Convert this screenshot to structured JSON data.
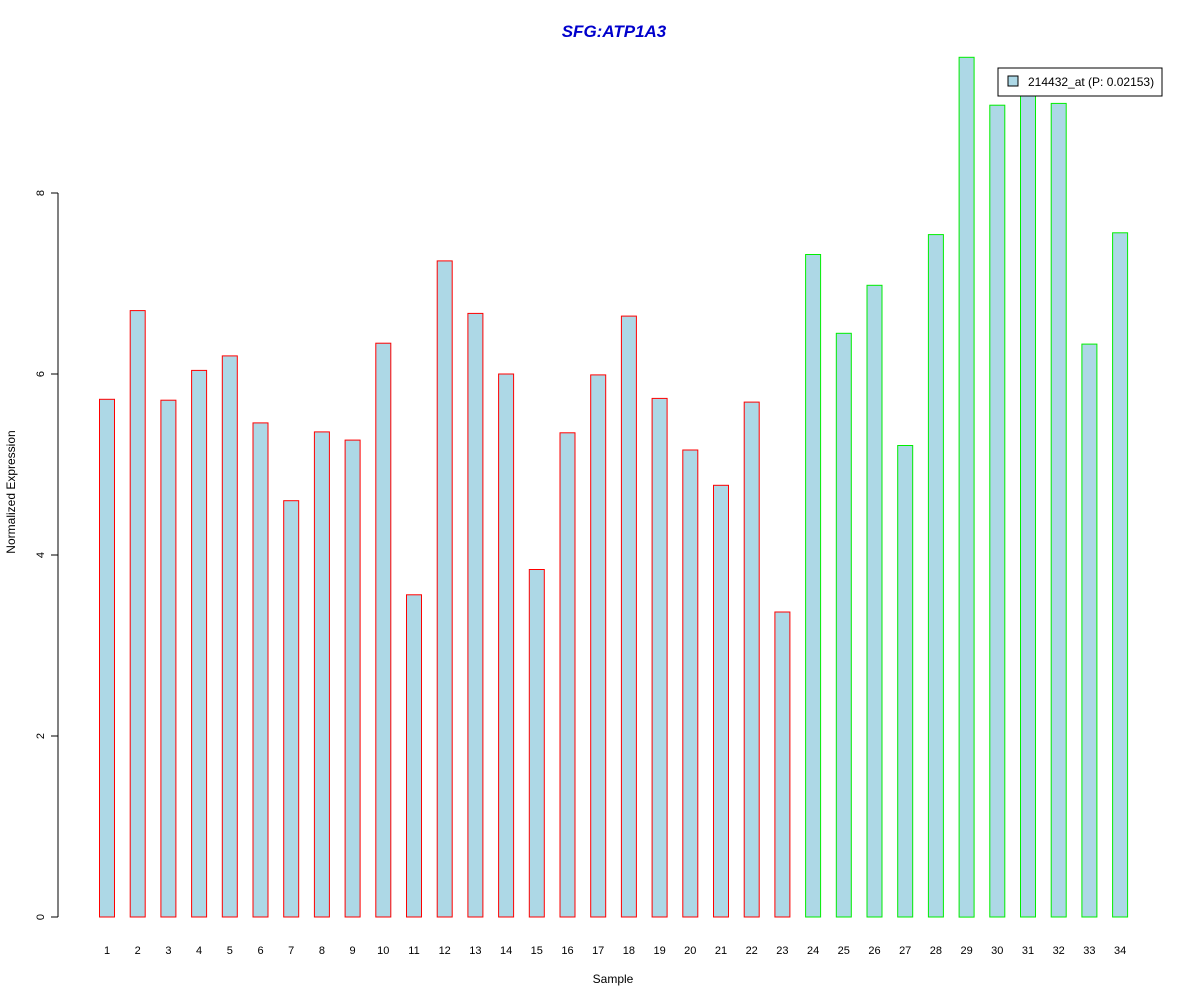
{
  "chart_data": {
    "type": "bar",
    "title": "SFG:ATP1A3",
    "xlabel": "Sample",
    "ylabel": "Normalized Expression",
    "ylim": [
      0,
      9.6
    ],
    "yticks": [
      "0",
      "2",
      "4",
      "6",
      "8"
    ],
    "categories": [
      "1",
      "2",
      "3",
      "4",
      "5",
      "6",
      "7",
      "8",
      "9",
      "10",
      "11",
      "12",
      "13",
      "14",
      "15",
      "16",
      "17",
      "18",
      "19",
      "20",
      "21",
      "22",
      "23",
      "24",
      "25",
      "26",
      "27",
      "28",
      "29",
      "30",
      "31",
      "32",
      "33",
      "34"
    ],
    "series": [
      {
        "name": "214432_at (P: 0.02153)",
        "values": [
          5.72,
          6.7,
          5.71,
          6.04,
          6.2,
          5.46,
          4.6,
          5.36,
          5.27,
          6.34,
          3.56,
          7.25,
          6.67,
          6.0,
          3.84,
          5.35,
          5.99,
          6.64,
          5.73,
          5.16,
          4.77,
          5.69,
          3.37,
          7.32,
          6.45,
          6.98,
          5.21,
          7.54,
          9.5,
          8.97,
          9.2,
          8.99,
          6.33,
          7.56
        ]
      }
    ],
    "bar_fill": "#add8e6",
    "group_colors": [
      "#ff0000",
      "#00ee00"
    ],
    "group_assignment": [
      0,
      0,
      0,
      0,
      0,
      0,
      0,
      0,
      0,
      0,
      0,
      0,
      0,
      0,
      0,
      0,
      0,
      0,
      0,
      0,
      0,
      0,
      0,
      1,
      1,
      1,
      1,
      1,
      1,
      1,
      1,
      1,
      1,
      1
    ],
    "legend": {
      "position": "top-right",
      "label": "214432_at (P: 0.02153)"
    },
    "grid": false
  }
}
